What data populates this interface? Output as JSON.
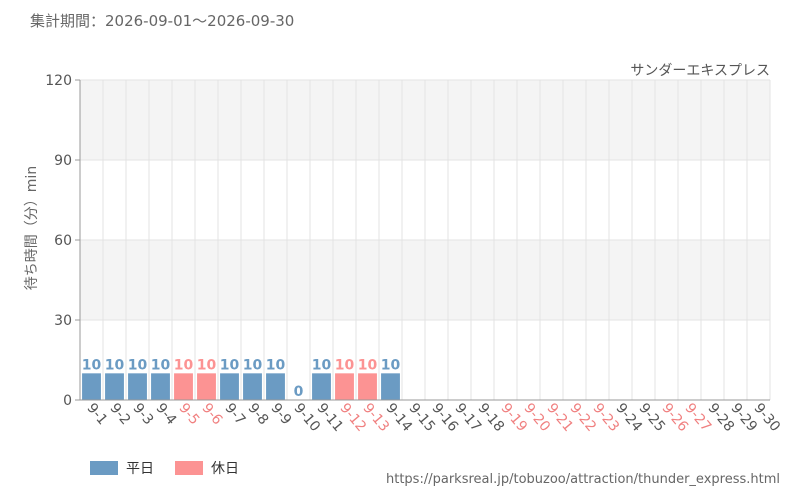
{
  "header": {
    "period_label": "集計期間：2026-09-01～2026-09-30"
  },
  "colors": {
    "weekday": "#6b9bc3",
    "holiday": "#fc9393",
    "tick_weekday": "#555555",
    "tick_holiday": "#f08080",
    "band": "#f4f4f4",
    "grid": "#e3e3e3"
  },
  "legend": {
    "weekday_label": "平日",
    "holiday_label": "休日"
  },
  "source_url": "https://parksreal.jp/tobuzoo/attraction/thunder_express.html",
  "chart_data": {
    "type": "bar",
    "title": "サンダーエキスプレス",
    "ylabel": "待ち時間（分）min",
    "xlabel": "",
    "ylim": [
      0,
      120
    ],
    "yticks": [
      0,
      30,
      60,
      90,
      120
    ],
    "grid": true,
    "categories": [
      "9-1",
      "9-2",
      "9-3",
      "9-4",
      "9-5",
      "9-6",
      "9-7",
      "9-8",
      "9-9",
      "9-10",
      "9-11",
      "9-12",
      "9-13",
      "9-14",
      "9-15",
      "9-16",
      "9-17",
      "9-18",
      "9-19",
      "9-20",
      "9-21",
      "9-22",
      "9-23",
      "9-24",
      "9-25",
      "9-26",
      "9-27",
      "9-28",
      "9-29",
      "9-30"
    ],
    "values": [
      10,
      10,
      10,
      10,
      10,
      10,
      10,
      10,
      10,
      0,
      10,
      10,
      10,
      10,
      null,
      null,
      null,
      null,
      null,
      null,
      null,
      null,
      null,
      null,
      null,
      null,
      null,
      null,
      null,
      null
    ],
    "day_type": [
      "weekday",
      "weekday",
      "weekday",
      "weekday",
      "holiday",
      "holiday",
      "weekday",
      "weekday",
      "weekday",
      "weekday",
      "weekday",
      "holiday",
      "holiday",
      "weekday",
      "weekday",
      "weekday",
      "weekday",
      "weekday",
      "holiday",
      "holiday",
      "holiday",
      "holiday",
      "holiday",
      "weekday",
      "weekday",
      "holiday",
      "holiday",
      "weekday",
      "weekday",
      "weekday"
    ],
    "legend_position": "bottom-left"
  }
}
